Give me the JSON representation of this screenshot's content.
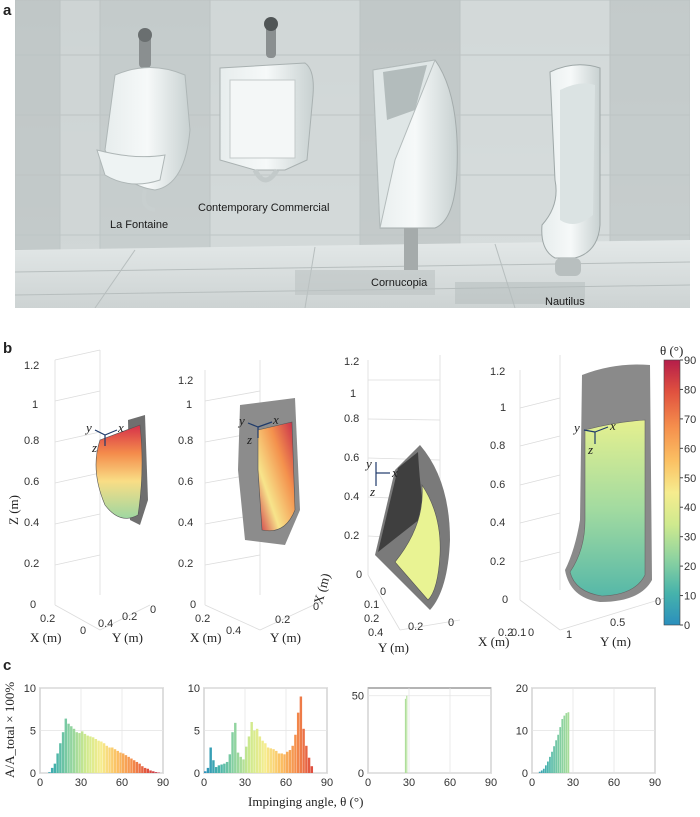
{
  "panels": {
    "a": "a",
    "b": "b",
    "c": "c"
  },
  "urinals": [
    {
      "name": "La Fontaine"
    },
    {
      "name": "Contemporary Commercial"
    },
    {
      "name": "Cornucopia"
    },
    {
      "name": "Nautilus"
    }
  ],
  "panel_b": {
    "z_label": "Z (m)",
    "x_label": "X (m)",
    "y_label": "Y (m)",
    "z_ticks": [
      "0",
      "0.2",
      "0.4",
      "0.6",
      "0.8",
      "1",
      "1.2"
    ],
    "local_axes": {
      "x": "x",
      "y": "y",
      "z": "z"
    },
    "plot1_xticks": [
      "0.4",
      "0.2"
    ],
    "plot1_yticks": [
      "0.2",
      "0"
    ],
    "plot2_xticks": [
      "0.2",
      "0.4"
    ],
    "plot2_yticks": [
      "0.2",
      "0"
    ],
    "plot3_xticks": [
      "0.2",
      "0.4"
    ],
    "plot3_yticks": [
      "0.4",
      "0.2",
      "0"
    ],
    "plot3_Xticks": [
      "0",
      "0.1",
      "0.2"
    ],
    "plot4_xticks": [
      "0.2",
      "0.1",
      "0"
    ],
    "plot4_yticks": [
      "1",
      "0.5",
      "0"
    ],
    "colorbar": {
      "label": "θ (°)",
      "ticks": [
        "90",
        "80",
        "70",
        "60",
        "50",
        "40",
        "30",
        "20",
        "10",
        "0"
      ],
      "colors": [
        "#b51d4a",
        "#e0513f",
        "#f58e4c",
        "#fbc063",
        "#f6ec8e",
        "#cfea8e",
        "#8ed3a0",
        "#46b3ab",
        "#2b8fbd"
      ]
    }
  },
  "chart_data": [
    {
      "type": "bar",
      "title": "",
      "xlabel": "Impinging angle, θ (°)",
      "ylabel": "A/A_total × 100%",
      "xlim": [
        0,
        90
      ],
      "ylim": [
        0,
        10
      ],
      "xticks": [
        "0",
        "30",
        "60",
        "90"
      ],
      "yticks": [
        "0",
        "5",
        "10"
      ],
      "bin_width": 2,
      "x": [
        1,
        3,
        5,
        7,
        9,
        11,
        13,
        15,
        17,
        19,
        21,
        23,
        25,
        27,
        29,
        31,
        33,
        35,
        37,
        39,
        41,
        43,
        45,
        47,
        49,
        51,
        53,
        55,
        57,
        59,
        61,
        63,
        65,
        67,
        69,
        71,
        73,
        75,
        77,
        79,
        81,
        83,
        85,
        87
      ],
      "values": [
        0,
        0,
        0,
        0.1,
        0.6,
        1.1,
        2.3,
        3.5,
        4.8,
        6.4,
        5.8,
        5.5,
        5.2,
        4.8,
        4.7,
        4.9,
        4.6,
        4.4,
        4.3,
        4.2,
        4.0,
        3.8,
        3.7,
        3.5,
        3.2,
        3.0,
        3.0,
        2.8,
        2.6,
        2.4,
        2.3,
        2.1,
        1.9,
        1.7,
        1.5,
        1.3,
        1.1,
        0.8,
        0.6,
        0.5,
        0.3,
        0.2,
        0.1,
        0.05
      ]
    },
    {
      "type": "bar",
      "title": "",
      "xlabel": "",
      "ylabel": "",
      "xlim": [
        0,
        90
      ],
      "ylim": [
        0,
        10
      ],
      "xticks": [
        "0",
        "30",
        "60",
        "90"
      ],
      "yticks": [
        "0",
        "5",
        "10"
      ],
      "bin_width": 2,
      "x": [
        1,
        3,
        5,
        7,
        9,
        11,
        13,
        15,
        17,
        19,
        21,
        23,
        25,
        27,
        29,
        31,
        33,
        35,
        37,
        39,
        41,
        43,
        45,
        47,
        49,
        51,
        53,
        55,
        57,
        59,
        61,
        63,
        65,
        67,
        69,
        71,
        73,
        75,
        77,
        79,
        81,
        83,
        85,
        87
      ],
      "values": [
        0.2,
        0.6,
        3.0,
        1.5,
        0.7,
        0.9,
        1.0,
        1.1,
        1.3,
        2.2,
        4.8,
        5.9,
        2.4,
        1.9,
        1.6,
        3.1,
        4.3,
        6.0,
        5.0,
        5.2,
        4.3,
        3.8,
        3.5,
        3.0,
        2.9,
        2.8,
        2.6,
        2.3,
        2.3,
        2.2,
        2.5,
        2.7,
        3.2,
        4.5,
        7.1,
        9.0,
        5.2,
        3.2,
        1.8,
        0.8,
        0,
        0,
        0,
        0
      ]
    },
    {
      "type": "bar",
      "title": "",
      "xlabel": "",
      "ylabel": "",
      "xlim": [
        0,
        90
      ],
      "ylim": [
        0,
        55
      ],
      "xticks": [
        "0",
        "30",
        "60",
        "90"
      ],
      "yticks": [
        "0",
        "50"
      ],
      "bin_width": 1,
      "x": [
        27.5,
        28.5
      ],
      "values": [
        48,
        50
      ]
    },
    {
      "type": "bar",
      "title": "",
      "xlabel": "",
      "ylabel": "",
      "xlim": [
        0,
        90
      ],
      "ylim": [
        0,
        20
      ],
      "xticks": [
        "0",
        "30",
        "60",
        "90"
      ],
      "yticks": [
        "0",
        "10",
        "20"
      ],
      "bin_width": 1.5,
      "x": [
        5.75,
        7.25,
        8.75,
        10.25,
        11.75,
        13.25,
        14.75,
        16.25,
        17.75,
        19.25,
        20.75,
        22.25,
        23.75,
        25.25,
        26.75
      ],
      "values": [
        0.3,
        0.6,
        1.0,
        1.8,
        2.7,
        3.8,
        5.0,
        6.3,
        7.7,
        9.0,
        10.8,
        12.7,
        13.5,
        14.1,
        14.3
      ]
    }
  ],
  "shared_xlabel": "Impinging angle, θ (°)"
}
